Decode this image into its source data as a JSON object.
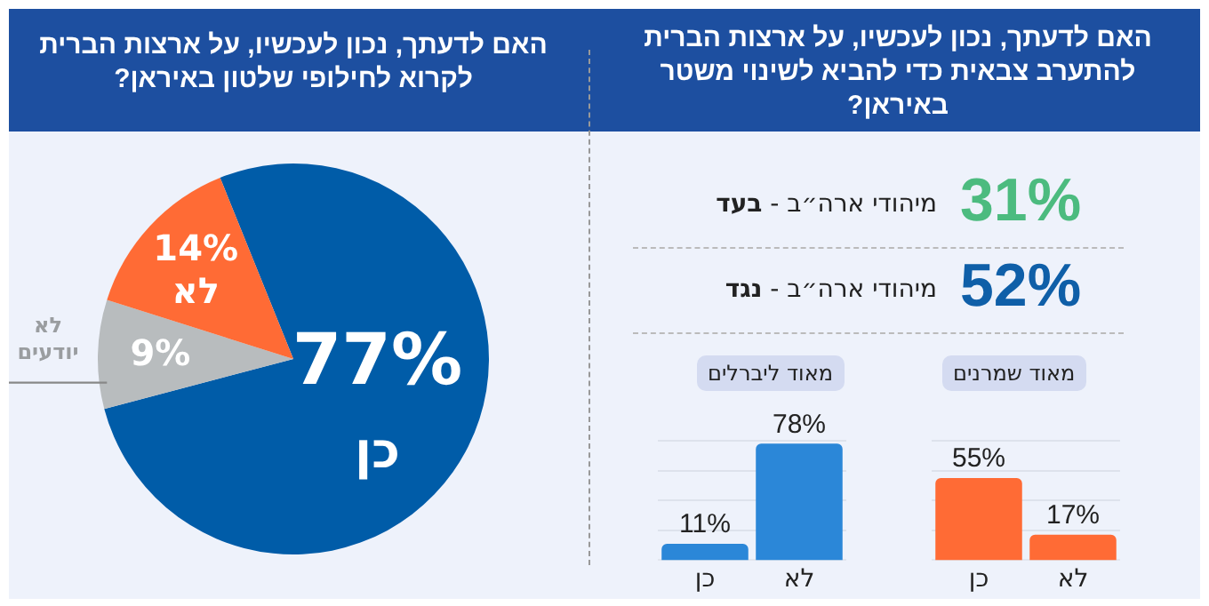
{
  "chart_data": [
    {
      "type": "other",
      "title": "האם לדעתך, נכון לעכשיו, על ארצות הברית להתערב צבאית כדי להביא לשינוי משטר באיראן?",
      "annotations": [
        "31%",
        "מיהודי ארה״ב - בעד",
        "52%",
        "מיהודי ארה״ב - נגד"
      ],
      "colors": [
        "#4cbb7f",
        "#222222",
        "#0f5fa8",
        "#222222"
      ]
    },
    {
      "type": "bar",
      "title": "מאוד שמרנים",
      "categories": [
        "כן",
        "לא"
      ],
      "values": [
        55,
        17
      ],
      "color": "#ff6b35",
      "value_labels": [
        "55%",
        "17%"
      ],
      "ylim": [
        0,
        80
      ],
      "grid": "y",
      "tick_labels": "x"
    },
    {
      "type": "bar",
      "title": "מאוד ליברלים",
      "categories": [
        "כן",
        "לא"
      ],
      "values": [
        11,
        78
      ],
      "color": "#2b87d8",
      "value_labels": [
        "11%",
        "78%"
      ],
      "ylim": [
        0,
        80
      ],
      "grid": "y",
      "tick_labels": "x"
    },
    {
      "type": "pie",
      "title": "האם לדעתך, נכון לעכשיו, על ארצות הברית לקרוא לחילופי שלטון באיראן?",
      "categories": [
        "כן",
        "לא יודעים",
        "לא"
      ],
      "values": [
        77,
        9,
        14
      ],
      "colors": [
        "#005ca8",
        "#b8bcbe",
        "#ff6b35"
      ],
      "value_labels": [
        "77%",
        "9%",
        "14%"
      ]
    }
  ]
}
